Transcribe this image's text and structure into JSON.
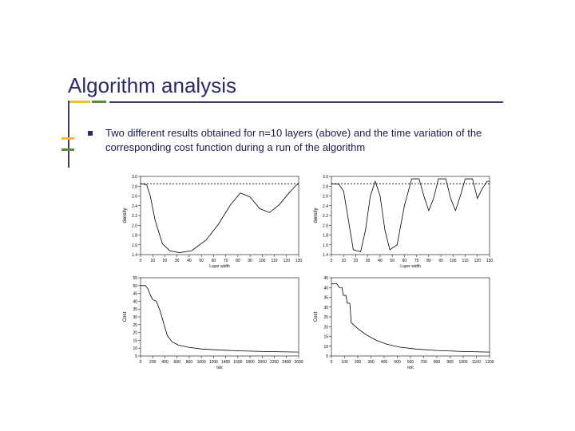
{
  "title": "Algorithm analysis",
  "bullet_text": "Two different results obtained for n=10 layers (above) and the time variation of the corresponding cost function during a run of the algorithm",
  "accent": {
    "yellow": "#f2c028",
    "green": "#5a8a3a",
    "line": "#3a3a70"
  },
  "charts": {
    "panel_bg": "#ffffff",
    "axis_color": "#000000",
    "curve_color": "#000000",
    "line_width": 0.8,
    "dash_pattern": "2 2",
    "label_fontsize": 5,
    "ylabel_fontsize": 6,
    "top_left": {
      "type": "line",
      "xlabel": "Layer width",
      "ylabel": "density",
      "xlim": [
        0,
        130
      ],
      "ylim": [
        1.4,
        3.0
      ],
      "xtick_step": 10,
      "ytick_step": 0.2,
      "solid": [
        [
          0,
          2.85
        ],
        [
          5,
          2.83
        ],
        [
          8,
          2.6
        ],
        [
          12,
          2.1
        ],
        [
          18,
          1.62
        ],
        [
          24,
          1.48
        ],
        [
          32,
          1.44
        ],
        [
          42,
          1.48
        ],
        [
          54,
          1.7
        ],
        [
          64,
          2.02
        ],
        [
          74,
          2.42
        ],
        [
          82,
          2.66
        ],
        [
          90,
          2.58
        ],
        [
          98,
          2.34
        ],
        [
          106,
          2.26
        ],
        [
          114,
          2.42
        ],
        [
          122,
          2.66
        ],
        [
          128,
          2.82
        ],
        [
          130,
          2.85
        ]
      ],
      "dashed_y": 2.85
    },
    "top_right": {
      "type": "line",
      "xlabel": "Layer width",
      "ylabel": "density",
      "xlim": [
        0,
        130
      ],
      "ylim": [
        1.4,
        3.0
      ],
      "xtick_step": 10,
      "ytick_step": 0.2,
      "solid": [
        [
          0,
          2.85
        ],
        [
          6,
          2.84
        ],
        [
          10,
          2.7
        ],
        [
          14,
          2.1
        ],
        [
          18,
          1.5
        ],
        [
          24,
          1.46
        ],
        [
          28,
          1.9
        ],
        [
          32,
          2.6
        ],
        [
          36,
          2.9
        ],
        [
          40,
          2.6
        ],
        [
          44,
          1.9
        ],
        [
          48,
          1.5
        ],
        [
          54,
          1.6
        ],
        [
          60,
          2.4
        ],
        [
          66,
          2.95
        ],
        [
          72,
          2.95
        ],
        [
          76,
          2.6
        ],
        [
          80,
          2.3
        ],
        [
          84,
          2.55
        ],
        [
          88,
          2.95
        ],
        [
          94,
          2.95
        ],
        [
          98,
          2.55
        ],
        [
          102,
          2.3
        ],
        [
          106,
          2.6
        ],
        [
          110,
          2.95
        ],
        [
          116,
          2.95
        ],
        [
          120,
          2.55
        ],
        [
          124,
          2.75
        ],
        [
          128,
          2.9
        ],
        [
          130,
          2.9
        ]
      ],
      "dashed_y": 2.85
    },
    "bottom_left": {
      "type": "line",
      "xlabel": "tick",
      "ylabel": "Cost",
      "xlim": [
        0,
        2600
      ],
      "ylim": [
        5,
        55
      ],
      "xtick_step": 200,
      "ytick_step": 5,
      "solid": [
        [
          0,
          50
        ],
        [
          80,
          50
        ],
        [
          120,
          48
        ],
        [
          160,
          44
        ],
        [
          200,
          41
        ],
        [
          260,
          40
        ],
        [
          320,
          34
        ],
        [
          380,
          26
        ],
        [
          440,
          18
        ],
        [
          520,
          14
        ],
        [
          620,
          12
        ],
        [
          800,
          10.5
        ],
        [
          1000,
          9.5
        ],
        [
          1300,
          8.8
        ],
        [
          1700,
          8.2
        ],
        [
          2100,
          7.8
        ],
        [
          2600,
          7.5
        ]
      ]
    },
    "bottom_right": {
      "type": "line",
      "xlabel": "tick",
      "ylabel": "Cost",
      "xlim": [
        0,
        1200
      ],
      "ylim": [
        5,
        45
      ],
      "xtick_step": 100,
      "ytick_step": 5,
      "solid": [
        [
          0,
          42
        ],
        [
          40,
          42
        ],
        [
          60,
          40
        ],
        [
          80,
          40
        ],
        [
          90,
          36
        ],
        [
          110,
          36
        ],
        [
          120,
          32
        ],
        [
          140,
          32
        ],
        [
          150,
          22
        ],
        [
          200,
          19
        ],
        [
          260,
          16
        ],
        [
          340,
          13
        ],
        [
          420,
          11
        ],
        [
          520,
          9.5
        ],
        [
          650,
          8.5
        ],
        [
          800,
          7.8
        ],
        [
          1000,
          7.3
        ],
        [
          1200,
          7.0
        ]
      ]
    }
  }
}
